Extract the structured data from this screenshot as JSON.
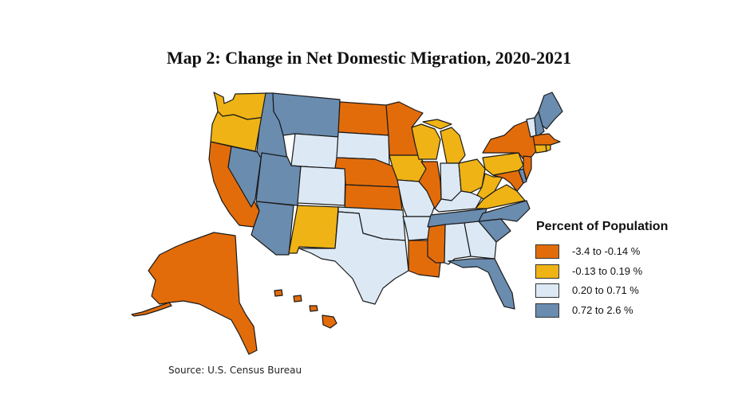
{
  "title": "Map 2: Change in Net Domestic Migration, 2020-2021",
  "source": "Source: U.S. Census Bureau",
  "legend": {
    "title": "Percent of Population",
    "items": [
      {
        "label": "-3.4 to -0.14 %",
        "color": "#e36c0a"
      },
      {
        "label": "-0.13 to 0.19 %",
        "color": "#efb315"
      },
      {
        "label": "0.20 to 0.71 %",
        "color": "#dce9f5"
      },
      {
        "label": "0.72 to 2.6 %",
        "color": "#6a8caf"
      }
    ]
  },
  "states": {
    "WA": 1,
    "OR": 1,
    "CA": 0,
    "NV": 3,
    "ID": 3,
    "MT": 3,
    "WY": 2,
    "UT": 3,
    "AZ": 3,
    "CO": 2,
    "NM": 1,
    "ND": 0,
    "SD": 2,
    "NE": 0,
    "KS": 0,
    "OK": 2,
    "TX": 2,
    "MN": 0,
    "IA": 1,
    "MO": 2,
    "AR": 2,
    "LA": 0,
    "WI": 1,
    "IL": 0,
    "MI": 1,
    "IN": 2,
    "OH": 1,
    "KY": 2,
    "TN": 3,
    "MS": 0,
    "AL": 2,
    "GA": 2,
    "FL": 3,
    "SC": 3,
    "NC": 3,
    "VA": 1,
    "WV": 1,
    "MD": 0,
    "DE": 3,
    "PA": 1,
    "NY": 0,
    "NJ": 0,
    "CT": 1,
    "RI": 1,
    "MA": 0,
    "VT": 2,
    "NH": 3,
    "ME": 3,
    "AK": 0,
    "HI": 0
  }
}
